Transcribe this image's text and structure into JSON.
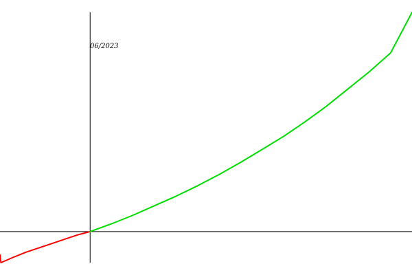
{
  "chart_data": {
    "type": "line",
    "annotation": "06/2023",
    "xlim": [
      -1.05,
      3.75
    ],
    "ylim": [
      -0.36,
      2.54
    ],
    "grid": false,
    "legend": "none",
    "series": [
      {
        "color": "#ff0000",
        "x": [
          -1.05,
          -1.04,
          -0.9,
          -0.75,
          -0.6,
          -0.45,
          -0.3,
          -0.15,
          0
        ],
        "y": [
          -0.27,
          -0.36,
          -0.3,
          -0.24,
          -0.19,
          -0.14,
          -0.09,
          -0.04,
          0
        ]
      },
      {
        "color": "#00dd00",
        "x": [
          0,
          0.25,
          0.5,
          0.75,
          1.0,
          1.25,
          1.5,
          1.75,
          2.0,
          2.25,
          2.5,
          2.75,
          3.0,
          3.25,
          3.5,
          3.75
        ],
        "y": [
          0,
          0.09,
          0.19,
          0.3,
          0.41,
          0.53,
          0.66,
          0.8,
          0.95,
          1.1,
          1.27,
          1.45,
          1.65,
          1.85,
          2.07,
          2.54
        ]
      }
    ]
  }
}
